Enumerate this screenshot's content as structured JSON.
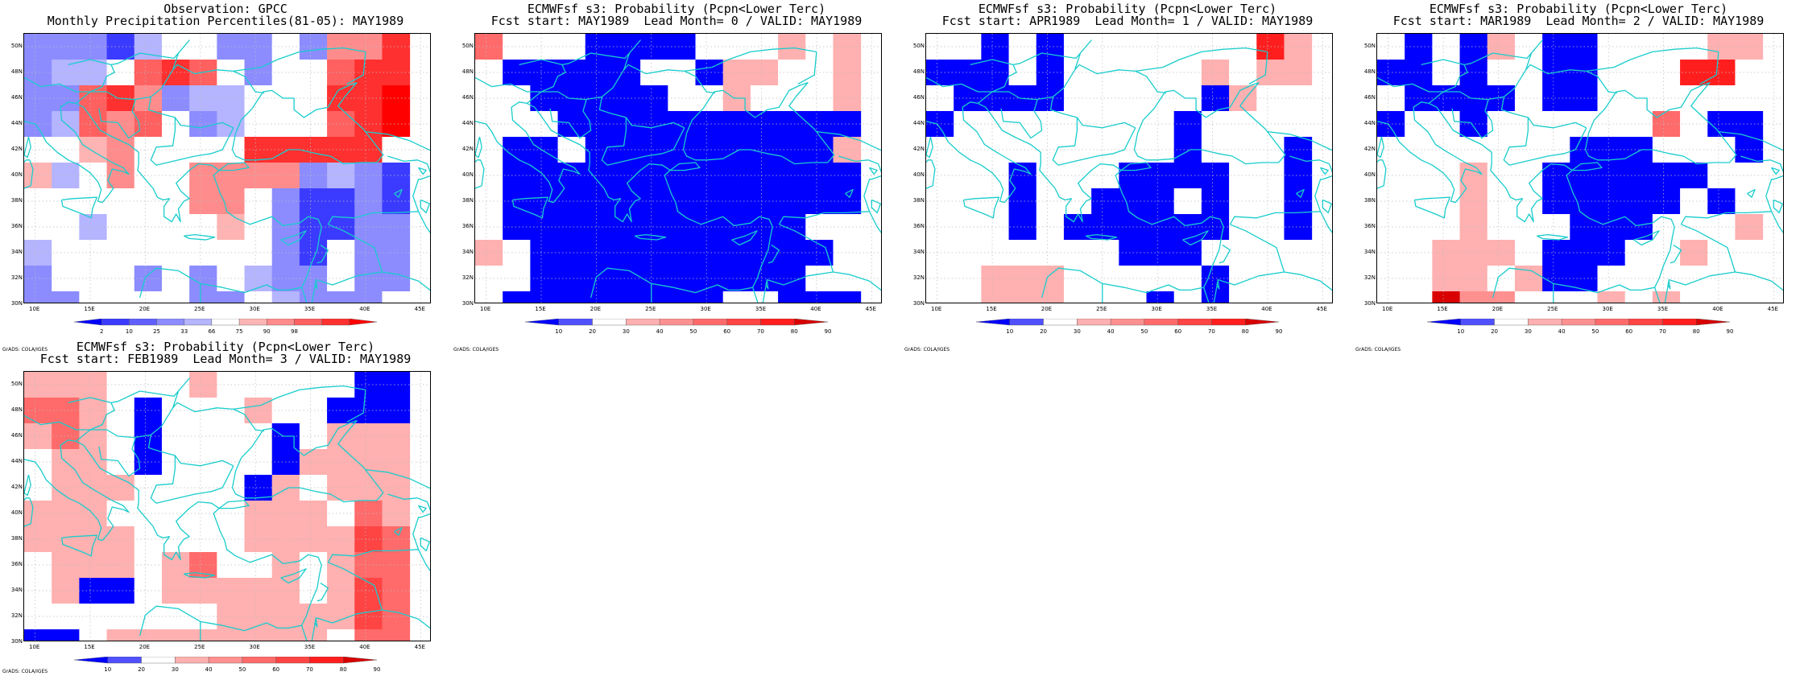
{
  "colors": {
    "coast": "#19cccc",
    "grid": "#bdbdbd",
    "obs_palette": [
      "#0000ff",
      "#3b3bff",
      "#6060ff",
      "#8c8cff",
      "#b4b4ff",
      "#ffffff",
      "#ffb4b4",
      "#ff8c8c",
      "#ff6060",
      "#ff3030",
      "#ff0000"
    ],
    "prob_palette": [
      "#0000ff",
      "#5050ff",
      "#ffffff",
      "#ffb0b0",
      "#ff9090",
      "#ff6a6a",
      "#ff4444",
      "#ff1e1e",
      "#d80000"
    ]
  },
  "map": {
    "lat_labels": [
      "50N",
      "48N",
      "46N",
      "44N",
      "42N",
      "40N",
      "38N",
      "36N",
      "34N",
      "32N",
      "30N"
    ],
    "lon_labels": [
      "10E",
      "15E",
      "20E",
      "25E",
      "30E",
      "35E",
      "40E",
      "45E"
    ],
    "credit": "GrADS: COLA/IGES"
  },
  "panels": [
    {
      "title1": "Observation: GPCC",
      "title2": "Monthly Precipitation Percentiles(81-05): MAY1989",
      "colorbar": {
        "labels": [
          "2",
          "10",
          "25",
          "33",
          "66",
          "75",
          "90",
          "98"
        ]
      },
      "chart_data": {
        "type": "heatmap",
        "lon_range": [
          9,
          46
        ],
        "lat_range": [
          30,
          51
        ],
        "cell_size_deg": [
          2.5,
          2
        ],
        "legend_bins": [
          "<2",
          "2-10",
          "10-25",
          "25-33",
          "33-66",
          "66-75",
          "75-90",
          "90-98",
          ">98"
        ],
        "grid": [
          [
            3,
            3,
            3,
            1,
            4,
            5,
            5,
            3,
            3,
            5,
            3,
            7,
            7,
            9
          ],
          [
            3,
            4,
            4,
            5,
            8,
            9,
            8,
            5,
            3,
            5,
            5,
            8,
            9,
            9
          ],
          [
            3,
            3,
            8,
            9,
            7,
            3,
            4,
            4,
            5,
            5,
            5,
            9,
            9,
            10
          ],
          [
            3,
            4,
            8,
            7,
            8,
            5,
            3,
            4,
            5,
            5,
            5,
            8,
            9,
            10
          ],
          [
            5,
            5,
            6,
            7,
            5,
            5,
            5,
            5,
            9,
            9,
            9,
            9,
            9,
            5
          ],
          [
            6,
            4,
            5,
            7,
            5,
            5,
            7,
            7,
            7,
            7,
            3,
            4,
            3,
            1
          ],
          [
            5,
            5,
            5,
            5,
            5,
            5,
            7,
            7,
            5,
            3,
            1,
            1,
            3,
            1
          ],
          [
            5,
            5,
            4,
            5,
            5,
            5,
            5,
            6,
            5,
            3,
            1,
            1,
            3,
            3
          ],
          [
            4,
            5,
            5,
            5,
            5,
            5,
            5,
            5,
            5,
            3,
            1,
            5,
            3,
            3
          ],
          [
            3,
            5,
            5,
            5,
            3,
            5,
            3,
            5,
            4,
            3,
            3,
            5,
            3,
            3
          ],
          [
            3,
            3,
            5,
            5,
            5,
            5,
            3,
            3,
            5,
            4,
            3,
            3,
            3,
            5
          ],
          [
            5,
            5,
            6,
            3,
            1,
            5,
            1,
            3,
            5,
            3,
            3,
            3,
            5,
            5
          ]
        ]
      }
    },
    {
      "title1": "ECMWFsf s3: Probability (Pcpn<Lower Terc)",
      "title2": "Fcst start: MAY1989  Lead Month= 0 / VALID: MAY1989",
      "colorbar": {
        "labels": [
          "10",
          "20",
          "30",
          "40",
          "50",
          "60",
          "70",
          "80",
          "90"
        ]
      },
      "chart_data": {
        "type": "heatmap",
        "lon_range": [
          9,
          46
        ],
        "lat_range": [
          30,
          51
        ],
        "cell_size_deg": [
          2.5,
          2
        ],
        "legend_bins": [
          "<10",
          "10-20",
          "20-40",
          "40-50",
          "50-60",
          "60-70",
          "70-80",
          "80-90",
          ">90"
        ],
        "grid": [
          [
            5,
            2,
            2,
            2,
            0,
            0,
            0,
            0,
            2,
            2,
            2,
            3,
            2,
            3
          ],
          [
            2,
            0,
            0,
            0,
            0,
            0,
            2,
            2,
            0,
            3,
            3,
            2,
            2,
            3
          ],
          [
            2,
            2,
            0,
            0,
            0,
            0,
            0,
            2,
            2,
            3,
            2,
            2,
            2,
            3
          ],
          [
            2,
            2,
            2,
            0,
            0,
            0,
            0,
            0,
            0,
            0,
            0,
            0,
            0,
            0
          ],
          [
            2,
            0,
            0,
            2,
            0,
            0,
            0,
            0,
            0,
            0,
            0,
            0,
            0,
            3
          ],
          [
            2,
            0,
            0,
            0,
            0,
            0,
            0,
            0,
            0,
            0,
            0,
            0,
            0,
            0
          ],
          [
            2,
            0,
            0,
            0,
            0,
            0,
            0,
            0,
            0,
            0,
            0,
            0,
            0,
            0
          ],
          [
            2,
            0,
            0,
            0,
            0,
            0,
            0,
            0,
            0,
            0,
            0,
            0,
            2,
            2
          ],
          [
            3,
            2,
            0,
            0,
            0,
            0,
            0,
            0,
            0,
            0,
            0,
            0,
            0,
            2
          ],
          [
            2,
            2,
            0,
            0,
            0,
            0,
            0,
            0,
            0,
            0,
            0,
            0,
            2,
            2
          ],
          [
            2,
            0,
            0,
            0,
            0,
            0,
            0,
            0,
            0,
            2,
            2,
            0,
            0,
            0
          ],
          [
            2,
            2,
            2,
            0,
            0,
            0,
            0,
            0,
            0,
            2,
            2,
            0,
            0,
            0
          ]
        ]
      }
    },
    {
      "title1": "ECMWFsf s3: Probability (Pcpn<Lower Terc)",
      "title2": "Fcst start: APR1989  Lead Month= 1 / VALID: MAY1989",
      "colorbar": {
        "labels": [
          "10",
          "20",
          "30",
          "40",
          "50",
          "60",
          "70",
          "80",
          "90"
        ]
      },
      "chart_data": {
        "type": "heatmap",
        "lon_range": [
          9,
          46
        ],
        "lat_range": [
          30,
          51
        ],
        "cell_size_deg": [
          2.5,
          2
        ],
        "legend_bins": [
          "<10",
          "10-20",
          "20-40",
          "40-50",
          "50-60",
          "60-70",
          "70-80",
          "80-90",
          ">90"
        ],
        "grid": [
          [
            2,
            2,
            0,
            2,
            0,
            2,
            2,
            2,
            2,
            2,
            2,
            2,
            7,
            3
          ],
          [
            0,
            0,
            0,
            2,
            0,
            2,
            2,
            2,
            2,
            2,
            3,
            2,
            3,
            3
          ],
          [
            2,
            0,
            0,
            0,
            0,
            2,
            2,
            2,
            2,
            2,
            0,
            3,
            2,
            2
          ],
          [
            0,
            2,
            2,
            2,
            2,
            2,
            2,
            2,
            2,
            0,
            2,
            2,
            2,
            2
          ],
          [
            2,
            2,
            2,
            2,
            2,
            2,
            2,
            2,
            2,
            0,
            2,
            2,
            2,
            0
          ],
          [
            2,
            2,
            2,
            0,
            2,
            2,
            2,
            0,
            0,
            0,
            0,
            2,
            2,
            0
          ],
          [
            2,
            2,
            2,
            0,
            2,
            2,
            0,
            0,
            0,
            2,
            0,
            2,
            2,
            0
          ],
          [
            2,
            2,
            2,
            0,
            2,
            0,
            0,
            0,
            0,
            0,
            0,
            2,
            2,
            0
          ],
          [
            2,
            2,
            2,
            2,
            2,
            2,
            2,
            0,
            0,
            0,
            2,
            2,
            2,
            2
          ],
          [
            2,
            2,
            3,
            3,
            3,
            2,
            2,
            2,
            2,
            2,
            0,
            2,
            2,
            2
          ],
          [
            2,
            2,
            3,
            3,
            3,
            2,
            2,
            2,
            0,
            2,
            0,
            2,
            2,
            2
          ],
          [
            0,
            2,
            2,
            2,
            2,
            2,
            2,
            2,
            2,
            2,
            0,
            2,
            0,
            3
          ]
        ]
      }
    },
    {
      "title1": "ECMWFsf s3: Probability (Pcpn<Lower Terc)",
      "title2": "Fcst start: MAR1989  Lead Month= 2 / VALID: MAY1989",
      "colorbar": {
        "labels": [
          "10",
          "20",
          "30",
          "40",
          "50",
          "60",
          "70",
          "80",
          "90"
        ]
      },
      "chart_data": {
        "type": "heatmap",
        "lon_range": [
          9,
          46
        ],
        "lat_range": [
          30,
          51
        ],
        "cell_size_deg": [
          2.5,
          2
        ],
        "legend_bins": [
          "<10",
          "10-20",
          "20-40",
          "40-50",
          "50-60",
          "60-70",
          "70-80",
          "80-90",
          ">90"
        ],
        "grid": [
          [
            2,
            0,
            2,
            0,
            3,
            2,
            0,
            0,
            2,
            2,
            2,
            2,
            3,
            3
          ],
          [
            0,
            0,
            2,
            0,
            2,
            2,
            0,
            0,
            2,
            2,
            2,
            7,
            7,
            2
          ],
          [
            2,
            0,
            0,
            0,
            0,
            2,
            0,
            0,
            2,
            2,
            2,
            2,
            2,
            2
          ],
          [
            0,
            2,
            2,
            0,
            2,
            2,
            2,
            2,
            2,
            2,
            5,
            2,
            0,
            0
          ],
          [
            2,
            2,
            2,
            2,
            2,
            2,
            2,
            0,
            0,
            0,
            2,
            2,
            2,
            0
          ],
          [
            2,
            2,
            2,
            3,
            2,
            2,
            0,
            0,
            0,
            0,
            0,
            0,
            2,
            2
          ],
          [
            2,
            2,
            2,
            3,
            2,
            2,
            0,
            0,
            0,
            0,
            0,
            2,
            0,
            2
          ],
          [
            2,
            2,
            2,
            3,
            2,
            2,
            2,
            0,
            0,
            0,
            2,
            2,
            2,
            3
          ],
          [
            2,
            2,
            3,
            3,
            3,
            2,
            0,
            0,
            0,
            2,
            2,
            3,
            2,
            2
          ],
          [
            2,
            2,
            3,
            3,
            2,
            3,
            0,
            0,
            2,
            2,
            2,
            2,
            2,
            2
          ],
          [
            2,
            2,
            8,
            4,
            4,
            2,
            2,
            2,
            3,
            2,
            3,
            2,
            2,
            2
          ],
          [
            2,
            2,
            2,
            2,
            2,
            2,
            2,
            2,
            2,
            3,
            4,
            2,
            2,
            3
          ]
        ]
      }
    },
    {
      "title1": "ECMWFsf s3: Probability (Pcpn<Lower Terc)",
      "title2": "Fcst start: FEB1989  Lead Month= 3 / VALID: MAY1989",
      "colorbar": {
        "labels": [
          "10",
          "20",
          "30",
          "40",
          "50",
          "60",
          "70",
          "80",
          "90"
        ]
      },
      "chart_data": {
        "type": "heatmap",
        "lon_range": [
          9,
          46
        ],
        "lat_range": [
          30,
          51
        ],
        "cell_size_deg": [
          2.5,
          2
        ],
        "legend_bins": [
          "<10",
          "10-20",
          "20-40",
          "40-50",
          "50-60",
          "60-70",
          "70-80",
          "80-90",
          ">90"
        ],
        "grid": [
          [
            3,
            3,
            3,
            2,
            2,
            2,
            3,
            2,
            2,
            2,
            2,
            2,
            0,
            0
          ],
          [
            5,
            5,
            3,
            2,
            0,
            2,
            2,
            2,
            3,
            2,
            2,
            0,
            0,
            0
          ],
          [
            3,
            5,
            3,
            2,
            0,
            2,
            2,
            2,
            2,
            0,
            2,
            3,
            3,
            3
          ],
          [
            2,
            3,
            3,
            2,
            0,
            2,
            2,
            2,
            2,
            0,
            3,
            3,
            3,
            3
          ],
          [
            2,
            3,
            3,
            3,
            2,
            2,
            2,
            2,
            0,
            3,
            2,
            3,
            3,
            3
          ],
          [
            3,
            3,
            3,
            2,
            2,
            2,
            2,
            2,
            3,
            3,
            3,
            2,
            5,
            3
          ],
          [
            3,
            3,
            3,
            3,
            2,
            2,
            2,
            2,
            3,
            3,
            3,
            3,
            6,
            5
          ],
          [
            2,
            3,
            3,
            3,
            2,
            3,
            5,
            2,
            2,
            3,
            2,
            3,
            5,
            5
          ],
          [
            2,
            3,
            0,
            0,
            2,
            3,
            3,
            3,
            3,
            3,
            2,
            3,
            6,
            5
          ],
          [
            2,
            2,
            2,
            2,
            2,
            2,
            2,
            3,
            3,
            3,
            3,
            3,
            6,
            5
          ],
          [
            0,
            0,
            2,
            3,
            3,
            3,
            3,
            3,
            3,
            3,
            3,
            2,
            5,
            5
          ],
          [
            0,
            2,
            2,
            2,
            3,
            3,
            3,
            3,
            3,
            3,
            2,
            3,
            5,
            7
          ]
        ]
      }
    }
  ]
}
